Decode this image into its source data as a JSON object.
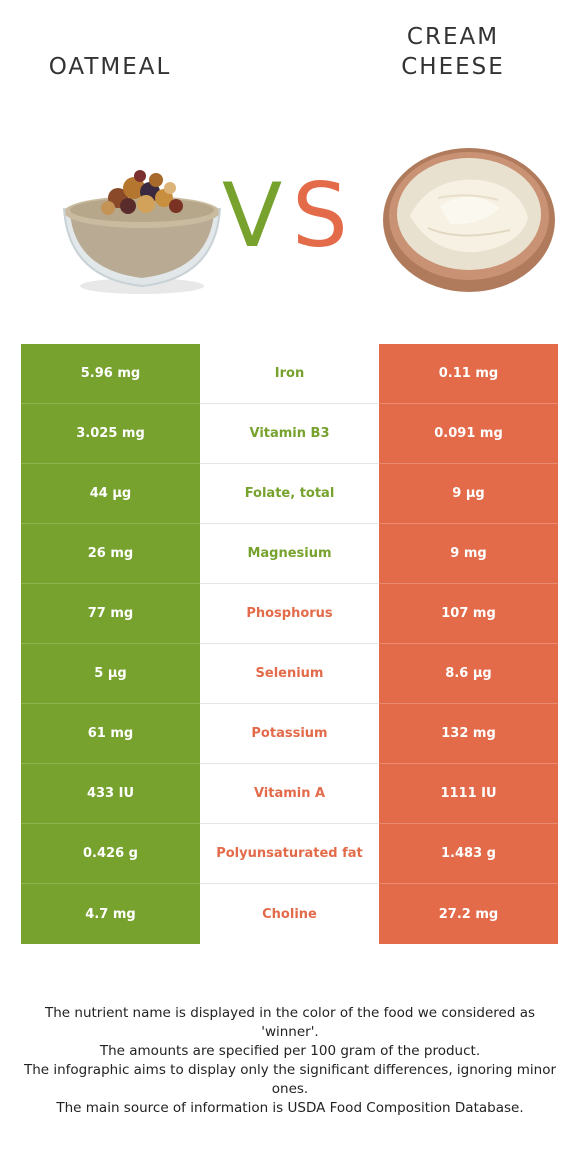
{
  "header": {
    "left_food": "OATMEAL",
    "right_food_line1": "CREAM",
    "right_food_line2": "CHEESE",
    "vs_v": "V",
    "vs_s": "S"
  },
  "colors": {
    "oatmeal": "#76a22d",
    "cream_cheese": "#e36b4a"
  },
  "images": {
    "left": "oatmeal-bowl",
    "right": "cream-cheese-bowl"
  },
  "rows": [
    {
      "left": "5.96 mg",
      "nutrient": "Iron",
      "right": "0.11 mg",
      "winner": "left"
    },
    {
      "left": "3.025 mg",
      "nutrient": "Vitamin B3",
      "right": "0.091 mg",
      "winner": "left"
    },
    {
      "left": "44 µg",
      "nutrient": "Folate, total",
      "right": "9 µg",
      "winner": "left"
    },
    {
      "left": "26 mg",
      "nutrient": "Magnesium",
      "right": "9 mg",
      "winner": "left"
    },
    {
      "left": "77 mg",
      "nutrient": "Phosphorus",
      "right": "107 mg",
      "winner": "right"
    },
    {
      "left": "5 µg",
      "nutrient": "Selenium",
      "right": "8.6 µg",
      "winner": "right"
    },
    {
      "left": "61 mg",
      "nutrient": "Potassium",
      "right": "132 mg",
      "winner": "right"
    },
    {
      "left": "433 IU",
      "nutrient": "Vitamin A",
      "right": "1111 IU",
      "winner": "right"
    },
    {
      "left": "0.426 g",
      "nutrient": "Polyunsaturated fat",
      "right": "1.483 g",
      "winner": "right"
    },
    {
      "left": "4.7 mg",
      "nutrient": "Choline",
      "right": "27.2 mg",
      "winner": "right"
    }
  ],
  "footer": {
    "line1": "The nutrient name is displayed in the color of the food we considered as 'winner'.",
    "line2": "The amounts are specified per 100 gram of the product.",
    "line3": "The infographic aims to display only the significant differences, ignoring minor ones.",
    "line4": "The main source of information is USDA Food Composition Database."
  }
}
